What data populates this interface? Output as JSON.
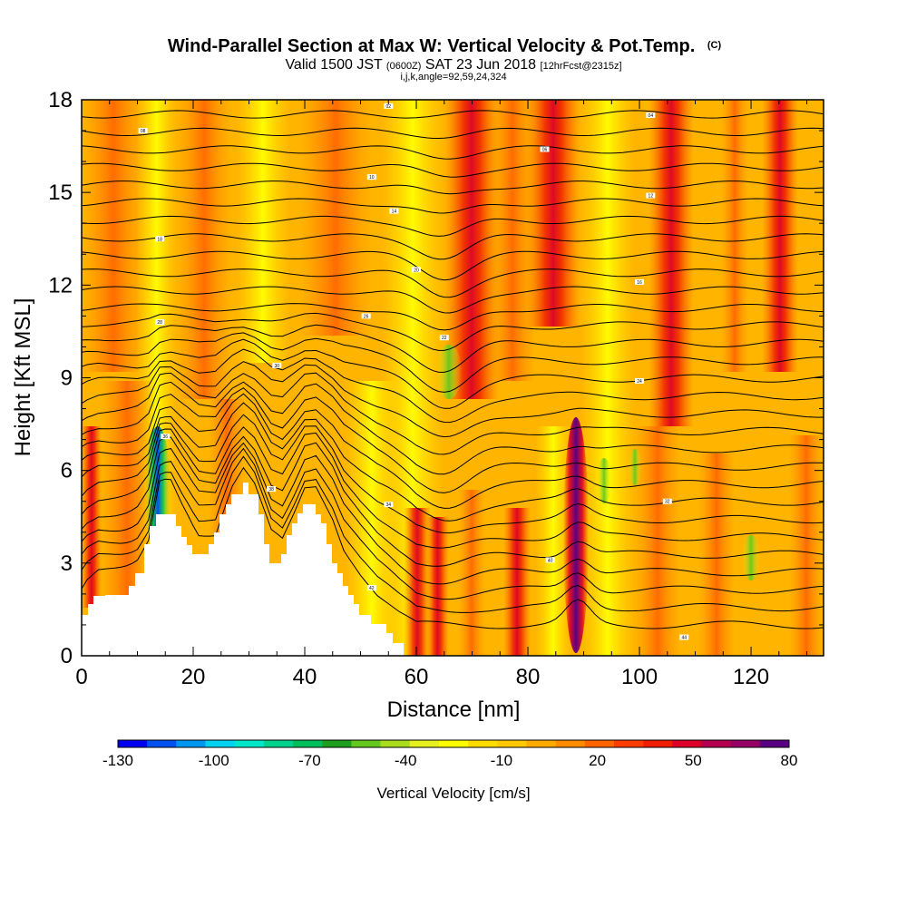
{
  "chart_data": {
    "type": "heatmap",
    "title": "Wind-Parallel Section at Max W: Vertical Velocity & Pot.Temp.",
    "title_mark": "(C)",
    "subtitle_parts": [
      "Valid 1500 JST ",
      "(0600Z)",
      " SAT 23 Jun 2018 ",
      "[12hrFcst@2315z]"
    ],
    "subtitle2": "i,j,k,angle=92,59,24,324",
    "xlabel": "Distance [nm]",
    "ylabel": "Height [Kft MSL]",
    "xlim": [
      0,
      133
    ],
    "ylim": [
      0,
      18
    ],
    "x_ticks": [
      "0",
      "20",
      "40",
      "60",
      "80",
      "100",
      "120"
    ],
    "y_ticks": [
      "0",
      "3",
      "6",
      "9",
      "12",
      "15",
      "18"
    ],
    "colorbar": {
      "label": "Vertical Velocity [cm/s]",
      "tick_labels": [
        "-130",
        "-100",
        "-70",
        "-40",
        "-10",
        "20",
        "50",
        "80"
      ],
      "colors": [
        "#0000f0",
        "#0050f0",
        "#0096f0",
        "#00d2f0",
        "#00e6c8",
        "#00d28c",
        "#00be5a",
        "#1ea01e",
        "#64c81e",
        "#aadc1e",
        "#e6f01e",
        "#ffff00",
        "#ffdc00",
        "#ffc800",
        "#ffaa00",
        "#ff8c00",
        "#ff6400",
        "#ff3c00",
        "#f01e00",
        "#dc0028",
        "#b40050",
        "#960064",
        "#5a0082"
      ]
    },
    "vertical_velocity_cm_s": {
      "columns_at_distance_nm": [
        0,
        11,
        14,
        15,
        18,
        25,
        26,
        32,
        46,
        62,
        65,
        66,
        67,
        70,
        76,
        80,
        84,
        88,
        89,
        92,
        96,
        100,
        104,
        106,
        114,
        118,
        124,
        130
      ],
      "max_upward_near_distance_nm": 89,
      "max_downward_near_distance_nm": 14
    },
    "potential_temperature_contour_labels": [
      "48",
      "46",
      "44",
      "42",
      "40",
      "38",
      "36",
      "34",
      "32",
      "30",
      "28",
      "26",
      "24",
      "22",
      "20",
      "18",
      "16",
      "14",
      "12",
      "10",
      "08",
      "06",
      "04",
      "02"
    ],
    "terrain_max_height_kft": 5.6
  }
}
